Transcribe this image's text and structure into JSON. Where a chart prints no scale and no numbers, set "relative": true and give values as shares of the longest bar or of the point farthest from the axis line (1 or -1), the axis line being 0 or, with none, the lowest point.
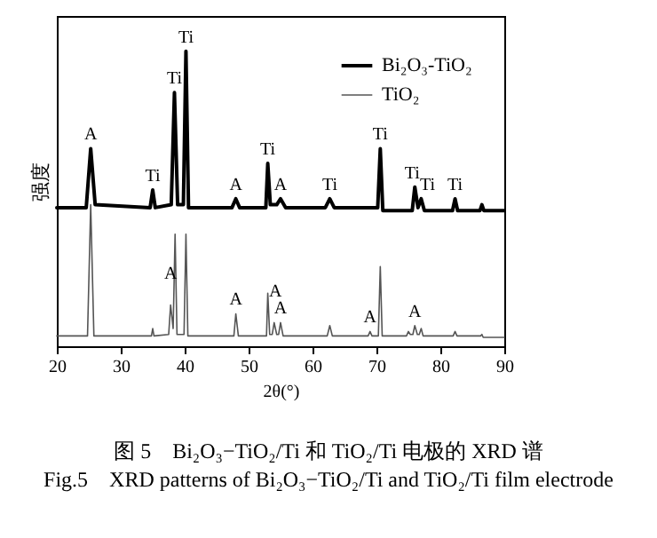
{
  "chart_data": {
    "type": "line",
    "relative": true,
    "xlabel": "2θ(°)",
    "ylabel": "强度",
    "xlim": [
      20,
      90
    ],
    "xticks": [
      20,
      30,
      40,
      50,
      60,
      70,
      80,
      90
    ],
    "legend": "top right",
    "series": [
      {
        "name": "Bi₂O₃-TiO₂",
        "color": "#000000",
        "x": [
          20,
          24.6,
          25.3,
          26,
          34.6,
          35,
          35.4,
          37.9,
          38.4,
          38.9,
          39.8,
          40.2,
          40.6,
          47.4,
          48,
          48.6,
          52.7,
          53,
          53.4,
          54.4,
          55,
          55.8,
          62,
          62.7,
          63.4,
          70.2,
          70.6,
          71,
          75.6,
          76,
          76.5,
          77,
          77.5,
          81.9,
          82.3,
          82.7,
          86.2,
          86.5,
          86.8,
          90
        ],
        "values": [
          0.47,
          0.47,
          0.67,
          0.48,
          0.47,
          0.53,
          0.47,
          0.48,
          0.86,
          0.48,
          0.48,
          1.0,
          0.47,
          0.47,
          0.5,
          0.47,
          0.47,
          0.62,
          0.48,
          0.48,
          0.5,
          0.47,
          0.47,
          0.5,
          0.47,
          0.47,
          0.67,
          0.46,
          0.46,
          0.54,
          0.47,
          0.5,
          0.46,
          0.46,
          0.5,
          0.46,
          0.46,
          0.48,
          0.46,
          0.46
        ]
      },
      {
        "name": "TiO₂",
        "color": "#555555",
        "x": [
          20,
          24.8,
          25.3,
          25.8,
          34.8,
          35,
          35.2,
          37.5,
          37.8,
          38.2,
          38.5,
          38.8,
          39.9,
          40.2,
          40.5,
          47.7,
          48,
          48.4,
          52.8,
          53,
          53.3,
          53.7,
          54,
          54.4,
          54.7,
          55,
          55.4,
          62.3,
          62.7,
          63.1,
          68.7,
          69,
          69.3,
          70.3,
          70.6,
          70.9,
          74.7,
          75,
          75.3,
          75.7,
          76,
          76.4,
          76.7,
          77,
          77.3,
          82,
          82.3,
          82.6,
          86.3,
          86.5,
          86.7,
          90
        ],
        "values": [
          0.035,
          0.035,
          0.48,
          0.035,
          0.035,
          0.06,
          0.035,
          0.04,
          0.14,
          0.06,
          0.38,
          0.04,
          0.04,
          0.38,
          0.035,
          0.035,
          0.11,
          0.035,
          0.035,
          0.18,
          0.04,
          0.04,
          0.08,
          0.04,
          0.04,
          0.08,
          0.035,
          0.035,
          0.07,
          0.035,
          0.035,
          0.05,
          0.035,
          0.035,
          0.27,
          0.035,
          0.035,
          0.05,
          0.04,
          0.04,
          0.07,
          0.04,
          0.04,
          0.06,
          0.035,
          0.035,
          0.05,
          0.035,
          0.035,
          0.04,
          0.03,
          0.03
        ]
      }
    ],
    "annotations": [
      {
        "text": "A",
        "x": 25.3,
        "y": 0.67
      },
      {
        "text": "Ti",
        "x": 35,
        "y": 0.53
      },
      {
        "text": "Ti",
        "x": 38.4,
        "y": 0.86
      },
      {
        "text": "Ti",
        "x": 40.2,
        "y": 1.0
      },
      {
        "text": "A",
        "x": 48,
        "y": 0.5
      },
      {
        "text": "Ti",
        "x": 53,
        "y": 0.62
      },
      {
        "text": "A",
        "x": 55,
        "y": 0.5
      },
      {
        "text": "Ti",
        "x": 62.7,
        "y": 0.5
      },
      {
        "text": "Ti",
        "x": 70.6,
        "y": 0.67
      },
      {
        "text": "Ti",
        "x": 75.6,
        "y": 0.54
      },
      {
        "text": "Ti",
        "x": 78,
        "y": 0.5
      },
      {
        "text": "Ti",
        "x": 82.3,
        "y": 0.5
      },
      {
        "text": "A",
        "x": 37.8,
        "y": 0.2
      },
      {
        "text": "A",
        "x": 48,
        "y": 0.11
      },
      {
        "text": "A",
        "x": 54.2,
        "y": 0.14
      },
      {
        "text": "A",
        "x": 55,
        "y": 0.08
      },
      {
        "text": "A",
        "x": 69,
        "y": 0.05
      },
      {
        "text": "A",
        "x": 76,
        "y": 0.07
      },
      "图 5　Bi₂O₃−TiO₂/Ti 和 TiO₂/Ti 电极的 XRD 谱",
      "Fig.5　XRD patterns of Bi₂O₃−TiO₂/Ti and TiO₂/Ti film electrode"
    ]
  }
}
